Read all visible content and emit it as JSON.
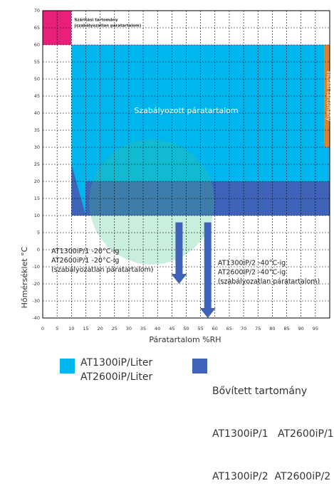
{
  "chart_data": {
    "type": "area",
    "xlabel": "Páratartalom %RH",
    "ylabel": "Hőmérséklet °C",
    "xlim": [
      0,
      100
    ],
    "ylim": [
      -40,
      70
    ],
    "x_ticks": [
      0,
      5,
      10,
      15,
      20,
      25,
      30,
      35,
      40,
      45,
      50,
      55,
      60,
      65,
      70,
      75,
      80,
      85,
      90,
      95
    ],
    "y_ticks": [
      -40,
      -30,
      -20,
      -10,
      0,
      5,
      10,
      15,
      20,
      25,
      30,
      35,
      40,
      45,
      50,
      55,
      60,
      65,
      70
    ],
    "grid": true,
    "regions": [
      {
        "name": "Szárítási tartomány (szabályozatlan páratartalom)",
        "color": "#e8207a",
        "points": [
          [
            0,
            60
          ],
          [
            10,
            60
          ],
          [
            10,
            70
          ],
          [
            0,
            70
          ]
        ],
        "label_lines": [
          "Szárítási tartomány",
          "(szabályozatlan páratartalom)"
        ]
      },
      {
        "name": "Szabályozott páratartalom",
        "color": "#00b6ee",
        "points": [
          [
            10,
            10
          ],
          [
            10,
            60
          ],
          [
            100,
            60
          ],
          [
            100,
            10
          ]
        ],
        "label": "Szabályozott páratartalom"
      },
      {
        "name": "Bővített tartomány",
        "color": "#3f63b8",
        "points": [
          [
            10,
            10
          ],
          [
            10,
            25
          ],
          [
            15,
            10
          ]
        ]
      },
      {
        "name": "Bővített tartomány",
        "color": "#3f63b8",
        "points": [
          [
            15,
            20
          ],
          [
            100,
            20
          ],
          [
            100,
            10
          ],
          [
            15,
            10
          ],
          [
            15,
            20
          ]
        ]
      },
      {
        "name": "Hűtési tartomány",
        "color": "#e0802a",
        "points": [
          [
            98,
            30
          ],
          [
            98,
            60
          ],
          [
            100,
            60
          ],
          [
            100,
            30
          ]
        ],
        "label": "Hűtési tartomány"
      }
    ],
    "arrows": [
      {
        "x": 47.5,
        "y_from": 8,
        "y_to": -20,
        "color": "#3f63b8"
      },
      {
        "x": 57.5,
        "y_from": 8,
        "y_to": -40,
        "color": "#3f63b8"
      }
    ],
    "annotations": [
      {
        "lines": [
          "AT1300iP/1 -20°C-ig",
          "AT2600iP/1 -20°C-ig",
          "(szabályozatlan páratartalom)"
        ],
        "x": 3,
        "y": -2
      },
      {
        "lines": [
          "AT1300iP/2 -40°C-ig",
          "AT2600iP/2 -40°C-ig",
          "(szabályozatlan páratartalom)"
        ],
        "x": 61,
        "y": -9
      }
    ]
  },
  "legend": {
    "item1": {
      "color": "#00b6ee",
      "line1": "AT1300iP/Liter",
      "line2": "AT2600iP/Liter"
    },
    "item2": {
      "color": "#3f63b8",
      "line1": "Bővített tartomány",
      "line2": "AT1300iP/1   AT2600iP/1",
      "line3": "AT1300iP/2  AT2600iP/2"
    }
  }
}
